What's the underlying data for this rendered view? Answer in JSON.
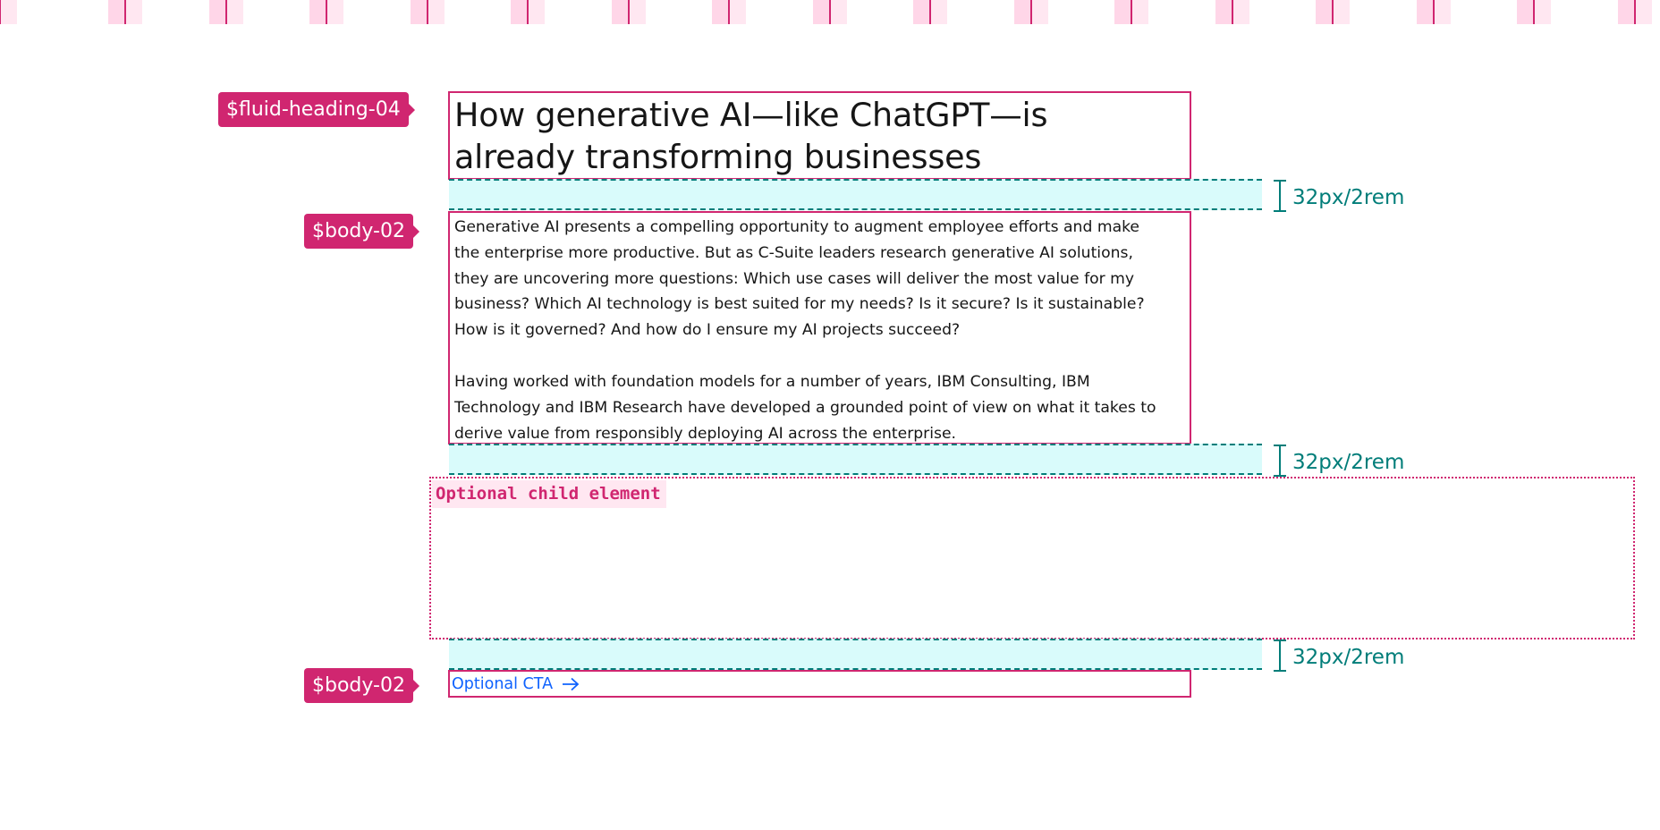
{
  "colors": {
    "token_tag": "#d02670",
    "box_outline": "#d02670",
    "spacing_fill": "#d9fbfb",
    "spacing_line": "#007d79",
    "cta_link": "#0f62fe",
    "grid_column": "#ffd6e8",
    "text": "#161616"
  },
  "tokens": {
    "heading": "$fluid-heading-04",
    "body": "$body-02",
    "cta": "$body-02"
  },
  "heading": {
    "text": "How generative AI—like ChatGPT—is already transforming businesses"
  },
  "body": {
    "paragraphs": [
      "Generative AI presents a compelling opportunity to augment employee efforts and make the enterprise more productive. But as C-Suite leaders research generative AI solutions, they are uncovering more questions: Which use cases will deliver the most value for my business? Which AI technology is best suited for my needs? Is it secure? Is it sustainable? How is it governed? And how do I ensure my AI projects succeed?",
      "Having worked with foundation models for a number of years, IBM Consulting, IBM Technology and IBM Research have developed a grounded point of view on what it takes to derive value from responsibly deploying AI across the enterprise."
    ]
  },
  "spacing": [
    {
      "label": "32px/2rem"
    },
    {
      "label": "32px/2rem"
    },
    {
      "label": "32px/2rem"
    }
  ],
  "optional_child": {
    "label": "Optional child element"
  },
  "cta": {
    "label": "Optional CTA",
    "icon": "arrow-right-icon"
  }
}
